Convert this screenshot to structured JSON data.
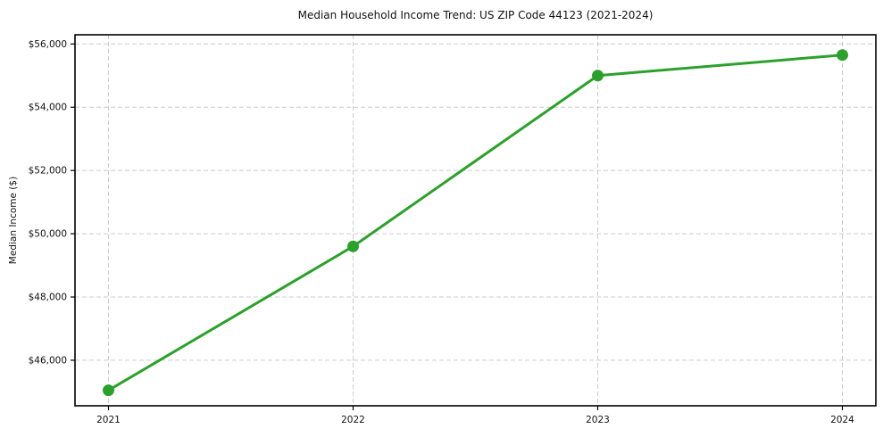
{
  "chart_data": {
    "type": "line",
    "title": "Median Household Income Trend: US ZIP Code 44123 (2021-2024)",
    "ylabel": "Median Income ($)",
    "xlabel": "",
    "categories": [
      "2021",
      "2022",
      "2023",
      "2024"
    ],
    "values": [
      45050,
      49600,
      55000,
      55650
    ],
    "yticks": {
      "values": [
        46000,
        48000,
        50000,
        52000,
        54000,
        56000
      ],
      "labels": [
        "$46,000",
        "$48,000",
        "$50,000",
        "$52,000",
        "$54,000",
        "$56,000"
      ]
    },
    "ylim": [
      44560,
      56290
    ],
    "grid": true,
    "grid_style": "dashed",
    "legend": false,
    "line_color": "#2ca02c",
    "marker": "circle",
    "marker_radius": 6.5,
    "line_width": 3,
    "grid_color": "#cccccc",
    "axis_color": "#000000",
    "background": "#ffffff"
  }
}
